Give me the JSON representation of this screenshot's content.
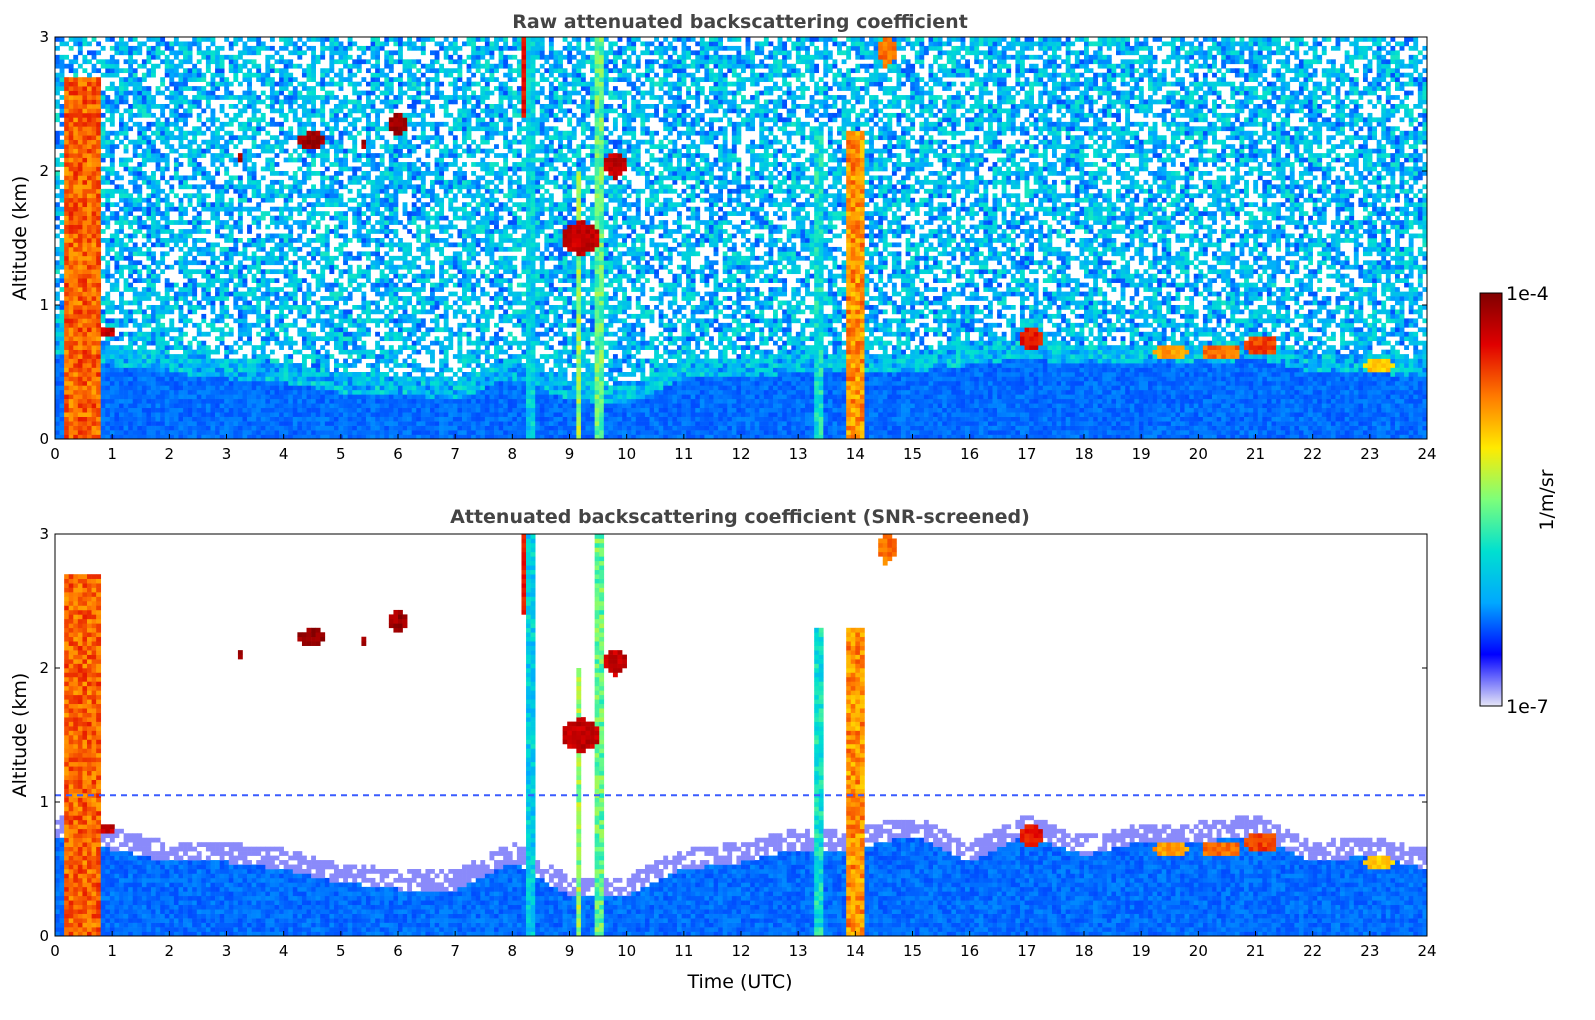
{
  "chart_data": [
    {
      "type": "heatmap",
      "title": "Raw attenuated backscattering coefficient",
      "xlabel": "",
      "ylabel": "Altitude (km)",
      "xlim": [
        0,
        24
      ],
      "ylim": [
        0,
        3
      ],
      "xticks": [
        "0",
        "1",
        "2",
        "3",
        "4",
        "5",
        "6",
        "7",
        "8",
        "9",
        "10",
        "11",
        "12",
        "13",
        "14",
        "15",
        "16",
        "17",
        "18",
        "19",
        "20",
        "21",
        "22",
        "23",
        "24"
      ],
      "yticks": [
        "0",
        "1",
        "2",
        "3"
      ],
      "grid": false,
      "noise_background": true,
      "boundary_layer_top_km": [
        [
          0,
          0.65
        ],
        [
          1,
          0.55
        ],
        [
          2,
          0.5
        ],
        [
          3,
          0.45
        ],
        [
          4,
          0.42
        ],
        [
          5,
          0.35
        ],
        [
          6,
          0.33
        ],
        [
          7,
          0.3
        ],
        [
          8,
          0.45
        ],
        [
          9,
          0.3
        ],
        [
          10,
          0.25
        ],
        [
          11,
          0.45
        ],
        [
          12,
          0.45
        ],
        [
          13,
          0.5
        ],
        [
          14,
          0.5
        ],
        [
          15,
          0.5
        ],
        [
          16,
          0.55
        ],
        [
          17,
          0.6
        ],
        [
          18,
          0.55
        ],
        [
          19,
          0.55
        ],
        [
          20,
          0.55
        ],
        [
          21,
          0.6
        ],
        [
          22,
          0.5
        ],
        [
          23,
          0.5
        ],
        [
          24,
          0.45
        ]
      ],
      "features": [
        {
          "kind": "column",
          "t0": 0.15,
          "t1": 0.8,
          "z0": 0.0,
          "z1": 2.7,
          "level": 0.85
        },
        {
          "kind": "column",
          "t0": 8.27,
          "t1": 8.38,
          "z0": 0.0,
          "z1": 3.0,
          "level": 0.4
        },
        {
          "kind": "column",
          "t0": 9.1,
          "t1": 9.2,
          "z0": 0.0,
          "z1": 2.0,
          "level": 0.6
        },
        {
          "kind": "column",
          "t0": 9.45,
          "t1": 9.62,
          "z0": 0.0,
          "z1": 3.0,
          "level": 0.55
        },
        {
          "kind": "column",
          "t0": 13.25,
          "t1": 13.4,
          "z0": 0.0,
          "z1": 2.3,
          "level": 0.45
        },
        {
          "kind": "column",
          "t0": 13.82,
          "t1": 14.15,
          "z0": 0.0,
          "z1": 2.3,
          "level": 0.8
        },
        {
          "kind": "blob",
          "t": 0.95,
          "z": 0.8,
          "rt": 0.12,
          "rz": 0.05,
          "level": 0.95
        },
        {
          "kind": "blob",
          "t": 4.5,
          "z": 2.23,
          "rt": 0.25,
          "rz": 0.06,
          "level": 1.0
        },
        {
          "kind": "blob",
          "t": 6.0,
          "z": 2.35,
          "rt": 0.2,
          "rz": 0.08,
          "level": 1.0
        },
        {
          "kind": "blob",
          "t": 5.4,
          "z": 2.2,
          "rt": 0.04,
          "rz": 0.03,
          "level": 1.0
        },
        {
          "kind": "blob",
          "t": 3.25,
          "z": 2.1,
          "rt": 0.03,
          "rz": 0.03,
          "level": 1.0
        },
        {
          "kind": "blob",
          "t": 9.2,
          "z": 1.5,
          "rt": 0.35,
          "rz": 0.12,
          "level": 0.95
        },
        {
          "kind": "blob",
          "t": 9.8,
          "z": 2.05,
          "rt": 0.2,
          "rz": 0.1,
          "level": 0.95
        },
        {
          "kind": "blob",
          "t": 8.2,
          "z": 2.7,
          "rt": 0.08,
          "rz": 0.3,
          "level": 0.9
        },
        {
          "kind": "blob",
          "t": 14.55,
          "z": 2.9,
          "rt": 0.15,
          "rz": 0.12,
          "level": 0.8
        },
        {
          "kind": "blob",
          "t": 17.1,
          "z": 0.75,
          "rt": 0.2,
          "rz": 0.08,
          "level": 0.9
        },
        {
          "kind": "blob",
          "t": 19.5,
          "z": 0.65,
          "rt": 0.3,
          "rz": 0.06,
          "level": 0.75
        },
        {
          "kind": "blob",
          "t": 20.4,
          "z": 0.65,
          "rt": 0.35,
          "rz": 0.06,
          "level": 0.8
        },
        {
          "kind": "blob",
          "t": 21.1,
          "z": 0.7,
          "rt": 0.3,
          "rz": 0.08,
          "level": 0.85
        },
        {
          "kind": "blob",
          "t": 23.15,
          "z": 0.55,
          "rt": 0.25,
          "rz": 0.05,
          "level": 0.7
        }
      ]
    },
    {
      "type": "heatmap",
      "title": "Attenuated backscattering coefficient (SNR-screened)",
      "xlabel": "Time (UTC)",
      "ylabel": "Altitude (km)",
      "xlim": [
        0,
        24
      ],
      "ylim": [
        0,
        3
      ],
      "xticks": [
        "0",
        "1",
        "2",
        "3",
        "4",
        "5",
        "6",
        "7",
        "8",
        "9",
        "10",
        "11",
        "12",
        "13",
        "14",
        "15",
        "16",
        "17",
        "18",
        "19",
        "20",
        "21",
        "22",
        "23",
        "24"
      ],
      "yticks": [
        "0",
        "1",
        "2",
        "3"
      ],
      "grid": false,
      "noise_background": false,
      "dashed_line_km": 1.05,
      "boundary_layer_top_km": [
        [
          0,
          0.75
        ],
        [
          1,
          0.65
        ],
        [
          2,
          0.55
        ],
        [
          3,
          0.55
        ],
        [
          4,
          0.5
        ],
        [
          5,
          0.4
        ],
        [
          6,
          0.35
        ],
        [
          7,
          0.35
        ],
        [
          8,
          0.55
        ],
        [
          9,
          0.3
        ],
        [
          10,
          0.3
        ],
        [
          11,
          0.5
        ],
        [
          12,
          0.55
        ],
        [
          13,
          0.65
        ],
        [
          14,
          0.65
        ],
        [
          15,
          0.75
        ],
        [
          16,
          0.55
        ],
        [
          17,
          0.75
        ],
        [
          18,
          0.6
        ],
        [
          19,
          0.7
        ],
        [
          20,
          0.7
        ],
        [
          21,
          0.75
        ],
        [
          22,
          0.55
        ],
        [
          23,
          0.6
        ],
        [
          24,
          0.5
        ]
      ]
    }
  ],
  "colorbar": {
    "label": "1/m/sr",
    "max_label": "1e-4",
    "min_label": "1e-7",
    "colormap": [
      "#e6e6f7",
      "#0000ff",
      "#00a8ff",
      "#00e0d0",
      "#7dff7a",
      "#ffea00",
      "#ff7a00",
      "#e00000",
      "#800000"
    ]
  }
}
